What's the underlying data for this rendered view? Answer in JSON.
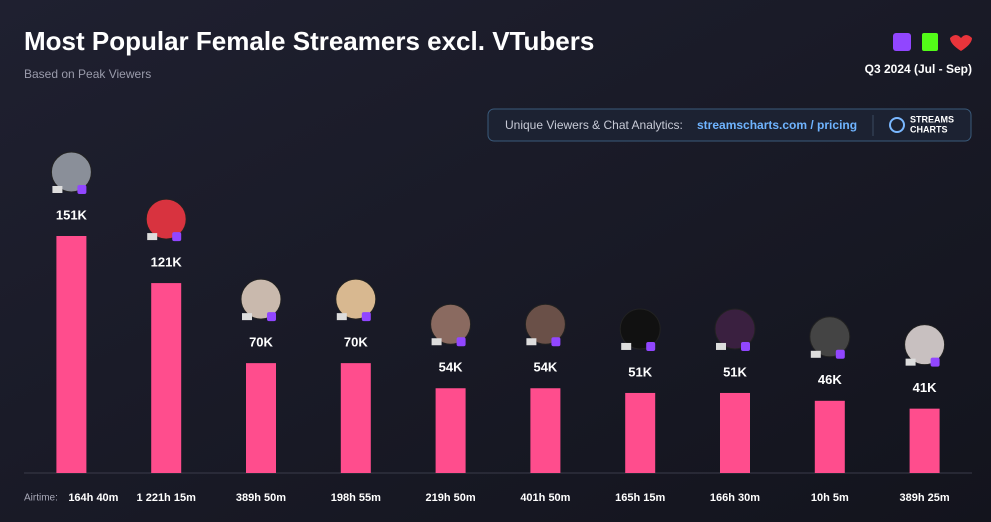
{
  "chart_data": {
    "type": "bar",
    "title": "Most Popular Female Streamers excl. VTubers",
    "subtitle": "Based on Peak Viewers",
    "period": "Q3 2024 (Jul - Sep)",
    "banner_text": "Unique Viewers & Chat Analytics:",
    "banner_link": "streamscharts.com / pricing",
    "brand": [
      "STREAMS",
      "CHARTS"
    ],
    "xlabel": "Airtime:",
    "categories": [
      "164h 40m",
      "1 221h 15m",
      "389h 50m",
      "198h 55m",
      "219h 50m",
      "401h 50m",
      "165h 15m",
      "166h 30m",
      "10h 5m",
      "389h 25m"
    ],
    "values": [
      151,
      121,
      70,
      70,
      54,
      54,
      51,
      51,
      46,
      41
    ],
    "value_labels": [
      "151K",
      "121K",
      "70K",
      "70K",
      "54K",
      "54K",
      "51K",
      "51K",
      "46K",
      "41K"
    ],
    "color": "#ff4d8d"
  }
}
